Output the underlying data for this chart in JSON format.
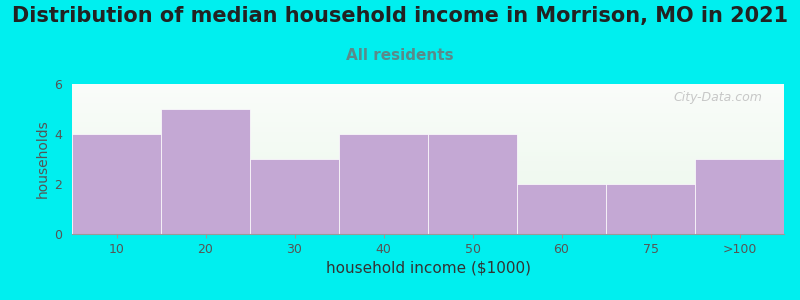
{
  "title": "Distribution of median household income in Morrison, MO in 2021",
  "subtitle": "All residents",
  "xlabel": "household income ($1000)",
  "ylabel": "households",
  "bar_labels": [
    "10",
    "20",
    "30",
    "40",
    "50",
    "60",
    "75",
    ">100"
  ],
  "bar_values": [
    4,
    5,
    3,
    4,
    4,
    2,
    2,
    3
  ],
  "bar_color": "#C4A8D4",
  "bar_edgecolor": "#C4A8D4",
  "fig_bg_color": "#00EFEF",
  "ylim": [
    0,
    6
  ],
  "yticks": [
    0,
    2,
    4,
    6
  ],
  "title_fontsize": 15,
  "subtitle_fontsize": 11,
  "xlabel_fontsize": 11,
  "ylabel_fontsize": 10,
  "watermark": "City-Data.com"
}
